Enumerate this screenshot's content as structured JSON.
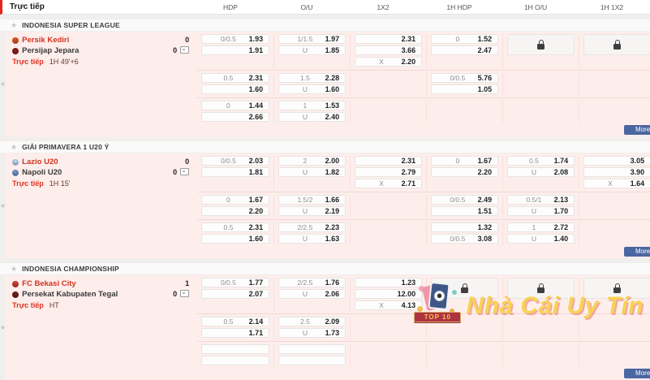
{
  "topbar": {
    "tab": "Trực tiếp",
    "columns": [
      "HDP",
      "O/U",
      "1X2",
      "1H HDP",
      "1H O/U",
      "1H 1X2"
    ]
  },
  "more_label": "More",
  "watermark": {
    "badge": "TOP 10",
    "text": "Nhà Cái Uy Tín"
  },
  "leagues": [
    {
      "name": "INDONESIA SUPER LEAGUE",
      "match": {
        "teams": [
          {
            "name": "Persik Kediri",
            "score": "0",
            "icon_color": "#e2571f"
          },
          {
            "name": "Persijap Jepara",
            "score": "0",
            "icon_color": "#8c1f1a"
          }
        ],
        "live_label": "Trực tiếp",
        "time": "1H 49'+6",
        "groups": [
          {
            "cols": [
              {
                "cells": [
                  [
                    "0/0.5",
                    "1.93"
                  ],
                  [
                    "",
                    "1.91"
                  ]
                ]
              },
              {
                "cells": [
                  [
                    "1/1.5",
                    "1.97"
                  ],
                  [
                    "U",
                    "1.85"
                  ]
                ]
              },
              {
                "cells": [
                  [
                    "",
                    "2.31"
                  ],
                  [
                    "",
                    "3.66"
                  ],
                  [
                    "X",
                    "2.20"
                  ]
                ]
              },
              {
                "cells": [
                  [
                    "0",
                    "1.52"
                  ],
                  [
                    "",
                    "2.47"
                  ]
                ]
              },
              {
                "lock": true
              },
              {
                "lock": true
              }
            ]
          },
          {
            "cols": [
              {
                "cells": [
                  [
                    "0.5",
                    "2.31"
                  ],
                  [
                    "",
                    "1.60"
                  ]
                ]
              },
              {
                "cells": [
                  [
                    "1.5",
                    "2.28"
                  ],
                  [
                    "U",
                    "1.60"
                  ]
                ]
              },
              {},
              {
                "cells": [
                  [
                    "0/0.5",
                    "5.76"
                  ],
                  [
                    "",
                    "1.05"
                  ]
                ]
              },
              {},
              {}
            ]
          },
          {
            "cols": [
              {
                "cells": [
                  [
                    "0",
                    "1.44"
                  ],
                  [
                    "",
                    "2.66"
                  ]
                ]
              },
              {
                "cells": [
                  [
                    "1",
                    "1.53"
                  ],
                  [
                    "U",
                    "2.40"
                  ]
                ]
              },
              {},
              {},
              {},
              {}
            ]
          }
        ]
      }
    },
    {
      "name": "GIẢI PRIMAVERA 1 U20 Ý",
      "match": {
        "teams": [
          {
            "name": "Lazio U20",
            "score": "0",
            "icon_color": "#bcd9f2"
          },
          {
            "name": "Napoli U20",
            "score": "0",
            "icon_color": "#7596c8"
          }
        ],
        "live_label": "Trực tiếp",
        "time": "1H 15'",
        "groups": [
          {
            "cols": [
              {
                "cells": [
                  [
                    "0/0.5",
                    "2.03"
                  ],
                  [
                    "",
                    "1.81"
                  ]
                ]
              },
              {
                "cells": [
                  [
                    "2",
                    "2.00"
                  ],
                  [
                    "U",
                    "1.82"
                  ]
                ]
              },
              {
                "cells": [
                  [
                    "",
                    "2.31"
                  ],
                  [
                    "",
                    "2.79"
                  ],
                  [
                    "X",
                    "2.71"
                  ]
                ]
              },
              {
                "cells": [
                  [
                    "0",
                    "1.67"
                  ],
                  [
                    "",
                    "2.20"
                  ]
                ]
              },
              {
                "cells": [
                  [
                    "0.5",
                    "1.74"
                  ],
                  [
                    "U",
                    "2.08"
                  ]
                ]
              },
              {
                "cells": [
                  [
                    "",
                    "3.05"
                  ],
                  [
                    "",
                    "3.90"
                  ],
                  [
                    "X",
                    "1.64"
                  ]
                ]
              }
            ]
          },
          {
            "cols": [
              {
                "cells": [
                  [
                    "0",
                    "1.67"
                  ],
                  [
                    "",
                    "2.20"
                  ]
                ]
              },
              {
                "cells": [
                  [
                    "1.5/2",
                    "1.66"
                  ],
                  [
                    "U",
                    "2.19"
                  ]
                ]
              },
              {},
              {
                "cells": [
                  [
                    "0/0.5",
                    "2.49"
                  ],
                  [
                    "",
                    "1.51"
                  ]
                ]
              },
              {
                "cells": [
                  [
                    "0.5/1",
                    "2.13"
                  ],
                  [
                    "U",
                    "1.70"
                  ]
                ]
              },
              {}
            ]
          },
          {
            "cols": [
              {
                "cells": [
                  [
                    "0.5",
                    "2.31"
                  ],
                  [
                    "",
                    "1.60"
                  ]
                ]
              },
              {
                "cells": [
                  [
                    "2/2.5",
                    "2.23"
                  ],
                  [
                    "U",
                    "1.63"
                  ]
                ]
              },
              {},
              {
                "cells": [
                  [
                    "",
                    "1.32"
                  ],
                  [
                    "0/0.5",
                    "3.08"
                  ]
                ]
              },
              {
                "cells": [
                  [
                    "1",
                    "2.72"
                  ],
                  [
                    "U",
                    "1.40"
                  ]
                ]
              },
              {}
            ]
          }
        ]
      }
    },
    {
      "name": "INDONESIA CHAMPIONSHIP",
      "match": {
        "teams": [
          {
            "name": "FC Bekasi City",
            "score": "1",
            "icon_color": "#d2402e"
          },
          {
            "name": "Persekat Kabupaten Tegal",
            "score": "0",
            "icon_color": "#70201c"
          }
        ],
        "live_label": "Trực tiếp",
        "time": "HT",
        "groups": [
          {
            "cols": [
              {
                "cells": [
                  [
                    "0/0.5",
                    "1.77"
                  ],
                  [
                    "",
                    "2.07"
                  ]
                ]
              },
              {
                "cells": [
                  [
                    "2/2.5",
                    "1.76"
                  ],
                  [
                    "U",
                    "2.06"
                  ]
                ]
              },
              {
                "cells": [
                  [
                    "",
                    "1.23"
                  ],
                  [
                    "",
                    "12.00"
                  ],
                  [
                    "X",
                    "4.13"
                  ]
                ]
              },
              {
                "lock": true
              },
              {
                "lock": true
              },
              {
                "lock": true
              }
            ]
          },
          {
            "cols": [
              {
                "cells": [
                  [
                    "0.5",
                    "2.14"
                  ],
                  [
                    "",
                    "1.71"
                  ]
                ]
              },
              {
                "cells": [
                  [
                    "2.5",
                    "2.09"
                  ],
                  [
                    "U",
                    "1.73"
                  ]
                ]
              },
              {},
              {},
              {},
              {}
            ]
          },
          {
            "cols": [
              {
                "cells": [
                  [
                    "",
                    ""
                  ],
                  [
                    "",
                    ""
                  ]
                ]
              },
              {
                "cells": [
                  [
                    "",
                    ""
                  ],
                  [
                    "",
                    ""
                  ]
                ]
              },
              {},
              {},
              {},
              {}
            ]
          }
        ]
      }
    }
  ]
}
